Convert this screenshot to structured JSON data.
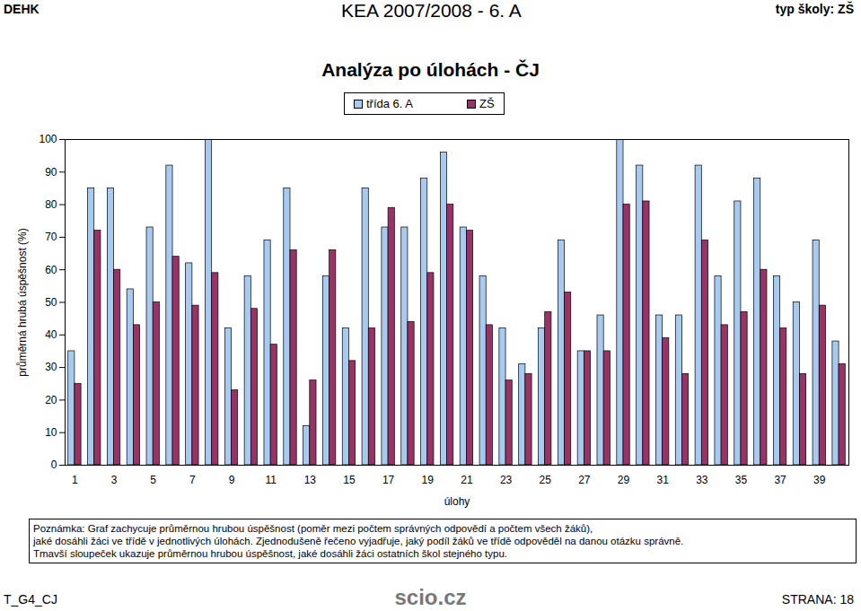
{
  "header": {
    "left": "DEHK",
    "center": "KEA 2007/2008 - 6. A",
    "right": "typ školy: ZŠ"
  },
  "chart_data": {
    "type": "bar",
    "title": "Analýza po úlohách - ČJ",
    "x_label": "úlohy",
    "y_label": "průměrná hrubá úspěšnost (%)",
    "categories": [
      "1",
      null,
      "3",
      null,
      "5",
      null,
      "7",
      null,
      "9",
      null,
      "11",
      null,
      "13",
      null,
      "15",
      null,
      "17",
      null,
      "19",
      null,
      "21",
      null,
      "23",
      null,
      "25",
      null,
      "27",
      null,
      "29",
      null,
      "31",
      null,
      "33",
      null,
      "35",
      null,
      "37",
      null,
      "39",
      null
    ],
    "series": [
      {
        "name": "třída  6. A",
        "color": "#a6caf0",
        "values": [
          35,
          85,
          85,
          54,
          73,
          92,
          62,
          100,
          42,
          58,
          69,
          85,
          12,
          58,
          42,
          85,
          73,
          73,
          88,
          96,
          73,
          58,
          42,
          31,
          42,
          69,
          35,
          46,
          100,
          92,
          46,
          46,
          92,
          58,
          81,
          88,
          58,
          50,
          69,
          38
        ]
      },
      {
        "name": "ZŠ",
        "color": "#993366",
        "values": [
          25,
          72,
          60,
          43,
          50,
          64,
          49,
          59,
          23,
          48,
          37,
          66,
          26,
          66,
          32,
          42,
          79,
          44,
          59,
          80,
          72,
          43,
          26,
          28,
          47,
          53,
          35,
          35,
          80,
          81,
          39,
          28,
          69,
          43,
          47,
          60,
          42,
          28,
          49,
          31
        ]
      }
    ],
    "ylim": [
      0,
      100
    ],
    "yticks": [
      0,
      10,
      20,
      30,
      40,
      50,
      60,
      70,
      80,
      90,
      100
    ],
    "grid": false,
    "legend": "top"
  },
  "note": [
    "Poznámka: Graf zachycuje průměrnou hrubou úspěšnost (poměr mezi počtem správných odpovědí a počtem všech žáků),",
    "jaké dosáhli žáci ve třídě v jednotlivých úlohách. Zjednodušeně řečeno vyjadřuje, jaký podíl žáků ve třídě odpověděl na danou otázku správně.",
    "Tmavší sloupeček ukazuje průměrnou hrubou úspěšnost, jaké dosáhli žáci ostatních škol stejného typu."
  ],
  "footer": {
    "left": "T_G4_CJ",
    "center": "scio.cz",
    "right": "STRANA: 18"
  }
}
